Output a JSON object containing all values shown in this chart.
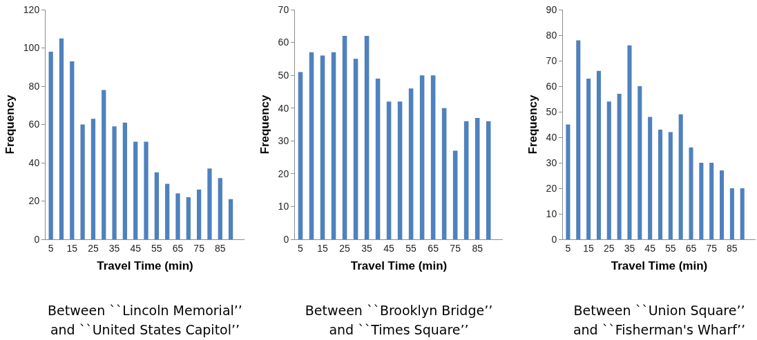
{
  "chart_data": [
    {
      "type": "bar",
      "xlabel": "Travel Time (min)",
      "ylabel": "Frequency",
      "categories": [
        "5",
        null,
        "15",
        null,
        "25",
        null,
        "35",
        null,
        "45",
        null,
        "55",
        null,
        "65",
        null,
        "75",
        null,
        "85",
        null
      ],
      "values": [
        98,
        105,
        93,
        60,
        63,
        78,
        59,
        61,
        51,
        51,
        35,
        29,
        24,
        22,
        26,
        37,
        32,
        21
      ],
      "color": "#4f81bd",
      "ylim": [
        0,
        120
      ],
      "yticks": [
        0,
        20,
        40,
        60,
        80,
        100,
        120
      ],
      "annotations": [
        "Between ``Lincoln Memorial’’ and ``United States Capitol’’"
      ]
    },
    {
      "type": "bar",
      "xlabel": "Travel Time (min)",
      "ylabel": "Frequency",
      "categories": [
        "5",
        null,
        "15",
        null,
        "25",
        null,
        "35",
        null,
        "45",
        null,
        "55",
        null,
        "65",
        null,
        "75",
        null,
        "85",
        null
      ],
      "values": [
        51,
        57,
        56,
        57,
        62,
        55,
        62,
        49,
        42,
        42,
        46,
        50,
        50,
        40,
        27,
        36,
        37,
        36
      ],
      "color": "#4f81bd",
      "ylim": [
        0,
        70
      ],
      "yticks": [
        0,
        10,
        20,
        30,
        40,
        50,
        60,
        70
      ],
      "annotations": [
        "Between ``Brooklyn Bridge’’ and ``Times Square’’"
      ]
    },
    {
      "type": "bar",
      "xlabel": "Travel Time (min)",
      "ylabel": "Frequency",
      "categories": [
        "5",
        null,
        "15",
        null,
        "25",
        null,
        "35",
        null,
        "45",
        null,
        "55",
        null,
        "65",
        null,
        "75",
        null,
        "85",
        null
      ],
      "values": [
        45,
        78,
        63,
        66,
        54,
        57,
        76,
        60,
        48,
        43,
        42,
        49,
        36,
        30,
        30,
        27,
        20,
        20
      ],
      "color": "#4f81bd",
      "ylim": [
        0,
        90
      ],
      "yticks": [
        0,
        10,
        20,
        30,
        40,
        50,
        60,
        70,
        80,
        90
      ],
      "annotations": [
        "Between ``Union Square’’ and ``Fisherman's Wharf’’"
      ]
    }
  ]
}
